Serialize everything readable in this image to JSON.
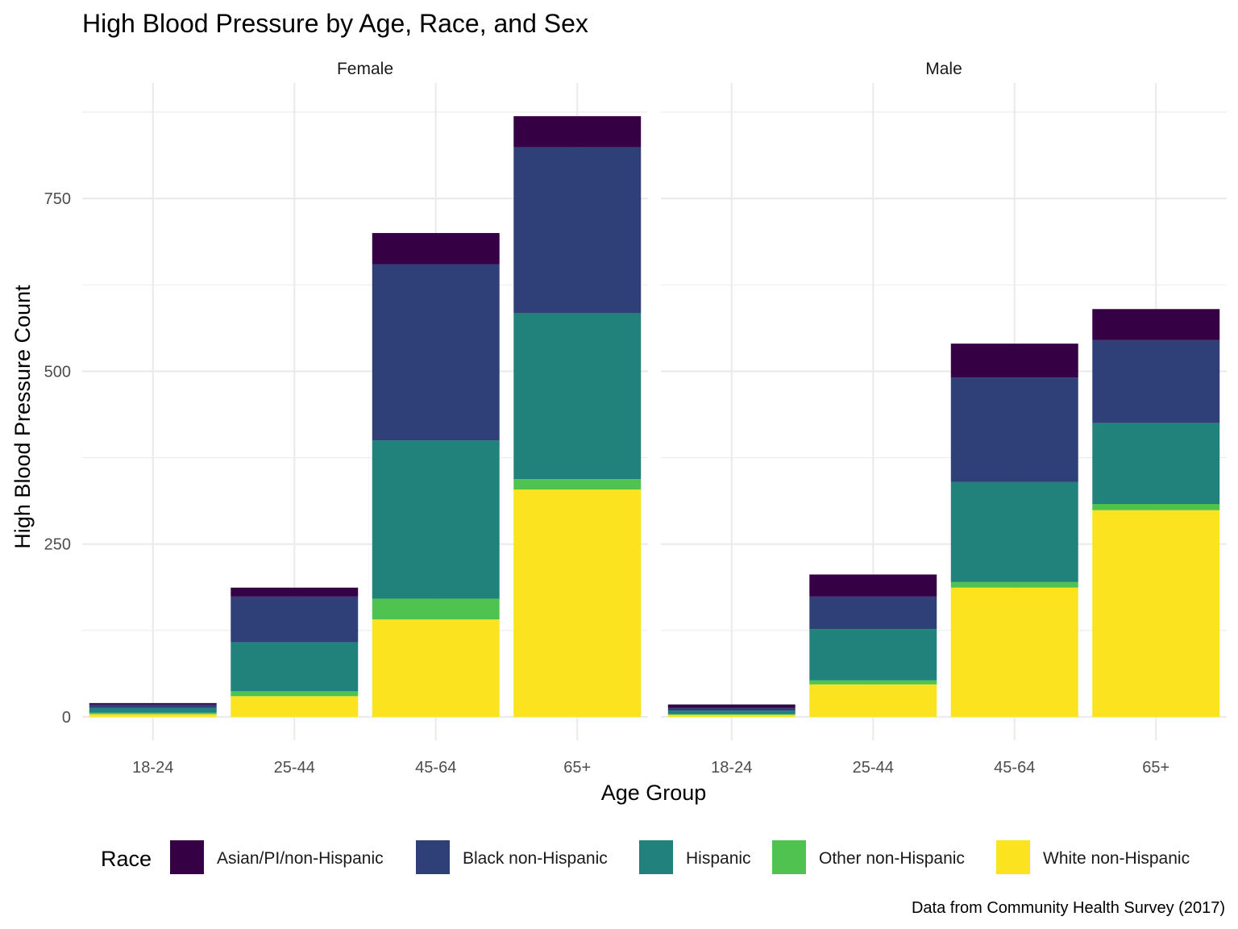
{
  "chart_data": {
    "type": "bar",
    "stacked": true,
    "title": "High Blood Pressure by Age, Race, and Sex",
    "xlabel": "Age Group",
    "ylabel": "High Blood Pressure Count",
    "caption": "Data from Community Health Survey (2017)",
    "categories": [
      "18-24",
      "25-44",
      "45-64",
      "65+"
    ],
    "yticks": [
      0,
      250,
      500,
      750
    ],
    "ylim": [
      -30,
      905
    ],
    "grid": true,
    "legend": {
      "title": "Race",
      "position": "bottom",
      "entries": [
        "Asian/PI/non-Hispanic",
        "Black non-Hispanic",
        "Hispanic",
        "Other non-Hispanic",
        "White non-Hispanic"
      ]
    },
    "colors": {
      "Asian/PI/non-Hispanic": "#360044",
      "Black non-Hispanic": "#2f3f78",
      "Hispanic": "#21817b",
      "Other non-Hispanic": "#4fc250",
      "White non-Hispanic": "#fbe31f"
    },
    "stack_order_bottom_to_top": [
      "White non-Hispanic",
      "Other non-Hispanic",
      "Hispanic",
      "Black non-Hispanic",
      "Asian/PI/non-Hispanic"
    ],
    "panels": [
      {
        "name": "Female",
        "series": [
          {
            "name": "White non-Hispanic",
            "values": [
              4,
              30,
              141,
              329
            ]
          },
          {
            "name": "Other non-Hispanic",
            "values": [
              2,
              7,
              30,
              15
            ]
          },
          {
            "name": "Hispanic",
            "values": [
              7,
              71,
              229,
              240
            ]
          },
          {
            "name": "Black non-Hispanic",
            "values": [
              5,
              66,
              255,
              240
            ]
          },
          {
            "name": "Asian/PI/non-Hispanic",
            "values": [
              2,
              13,
              45,
              45
            ]
          }
        ]
      },
      {
        "name": "Male",
        "series": [
          {
            "name": "White non-Hispanic",
            "values": [
              3,
              47,
              187,
              299
            ]
          },
          {
            "name": "Other non-Hispanic",
            "values": [
              1,
              6,
              8,
              9
            ]
          },
          {
            "name": "Hispanic",
            "values": [
              5,
              74,
              145,
              117
            ]
          },
          {
            "name": "Black non-Hispanic",
            "values": [
              4,
              47,
              151,
              120
            ]
          },
          {
            "name": "Asian/PI/non-Hispanic",
            "values": [
              5,
              32,
              49,
              45
            ]
          }
        ]
      }
    ]
  }
}
